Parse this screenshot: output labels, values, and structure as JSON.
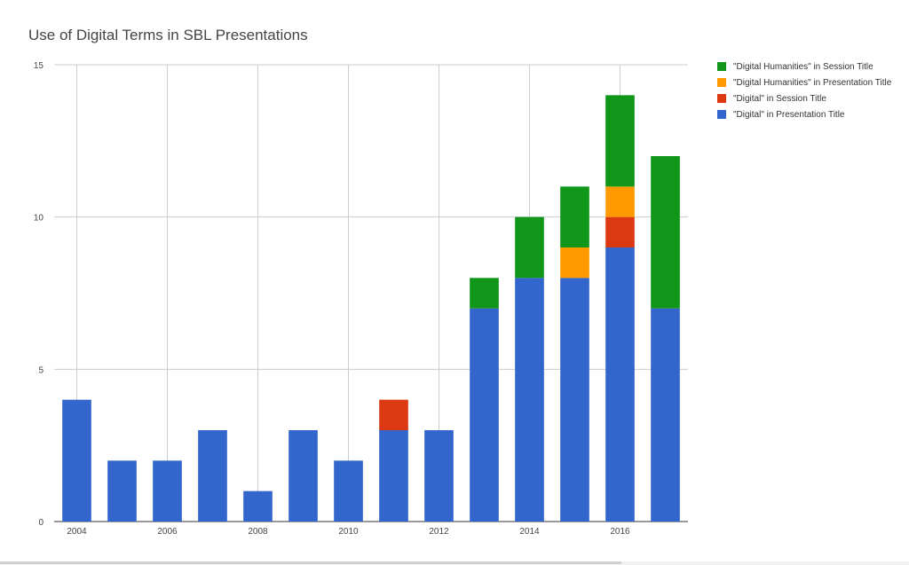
{
  "chart_data": {
    "type": "bar",
    "stacked": true,
    "title": "Use of Digital Terms in SBL Presentations",
    "xlabel": "",
    "ylabel": "",
    "ylim": [
      0,
      15
    ],
    "yticks": [
      0,
      5,
      10,
      15
    ],
    "categories": [
      "2004",
      "2005",
      "2006",
      "2007",
      "2008",
      "2009",
      "2010",
      "2011",
      "2012",
      "2013",
      "2014",
      "2015",
      "2016",
      "2017"
    ],
    "xtick_labels": [
      "2004",
      "2006",
      "2008",
      "2010",
      "2012",
      "2014",
      "2016"
    ],
    "grid": true,
    "legend_position": "right",
    "series": [
      {
        "name": "\"Digital\" in Presentation Title",
        "color": "#3366cc",
        "values": [
          4,
          2,
          2,
          3,
          1,
          3,
          2,
          3,
          3,
          7,
          8,
          8,
          9,
          7
        ]
      },
      {
        "name": "\"Digital\" in Session Title",
        "color": "#dc3912",
        "values": [
          0,
          0,
          0,
          0,
          0,
          0,
          0,
          1,
          0,
          0,
          0,
          0,
          1,
          0
        ]
      },
      {
        "name": "\"Digital Humanities\" in Presentation Title",
        "color": "#ff9900",
        "values": [
          0,
          0,
          0,
          0,
          0,
          0,
          0,
          0,
          0,
          0,
          0,
          1,
          1,
          0
        ]
      },
      {
        "name": "\"Digital Humanities\" in Session Title",
        "color": "#109618",
        "values": [
          0,
          0,
          0,
          0,
          0,
          0,
          0,
          0,
          0,
          1,
          2,
          2,
          3,
          5
        ]
      }
    ]
  }
}
